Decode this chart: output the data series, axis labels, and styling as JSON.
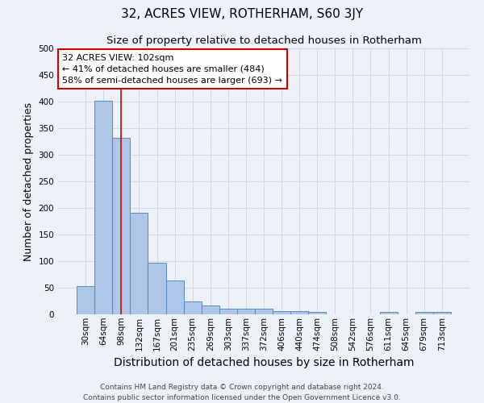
{
  "title": "32, ACRES VIEW, ROTHERHAM, S60 3JY",
  "subtitle": "Size of property relative to detached houses in Rotherham",
  "xlabel": "Distribution of detached houses by size in Rotherham",
  "ylabel": "Number of detached properties",
  "categories": [
    "30sqm",
    "64sqm",
    "98sqm",
    "132sqm",
    "167sqm",
    "201sqm",
    "235sqm",
    "269sqm",
    "303sqm",
    "337sqm",
    "372sqm",
    "406sqm",
    "440sqm",
    "474sqm",
    "508sqm",
    "542sqm",
    "576sqm",
    "611sqm",
    "645sqm",
    "679sqm",
    "713sqm"
  ],
  "values": [
    53,
    402,
    332,
    191,
    97,
    63,
    25,
    16,
    11,
    11,
    11,
    6,
    6,
    5,
    0,
    0,
    0,
    5,
    0,
    5,
    5
  ],
  "bar_color": "#aec6e8",
  "bar_edge_color": "#5589c0",
  "grid_color": "#d0d8e8",
  "bg_color": "#eef2f8",
  "vline_x": 2,
  "vline_color": "#cc0000",
  "annotation_text": "32 ACRES VIEW: 102sqm\n← 41% of detached houses are smaller (484)\n58% of semi-detached houses are larger (693) →",
  "annotation_box_color": "#ffffff",
  "annotation_box_edge": "#cc0000",
  "footer_line1": "Contains HM Land Registry data © Crown copyright and database right 2024.",
  "footer_line2": "Contains public sector information licensed under the Open Government Licence v3.0.",
  "ylim": [
    0,
    500
  ],
  "yticks": [
    0,
    50,
    100,
    150,
    200,
    250,
    300,
    350,
    400,
    450,
    500
  ],
  "title_fontsize": 11,
  "subtitle_fontsize": 9.5,
  "xlabel_fontsize": 10,
  "ylabel_fontsize": 9,
  "tick_fontsize": 7.5,
  "annotation_fontsize": 8,
  "footer_fontsize": 6.5
}
